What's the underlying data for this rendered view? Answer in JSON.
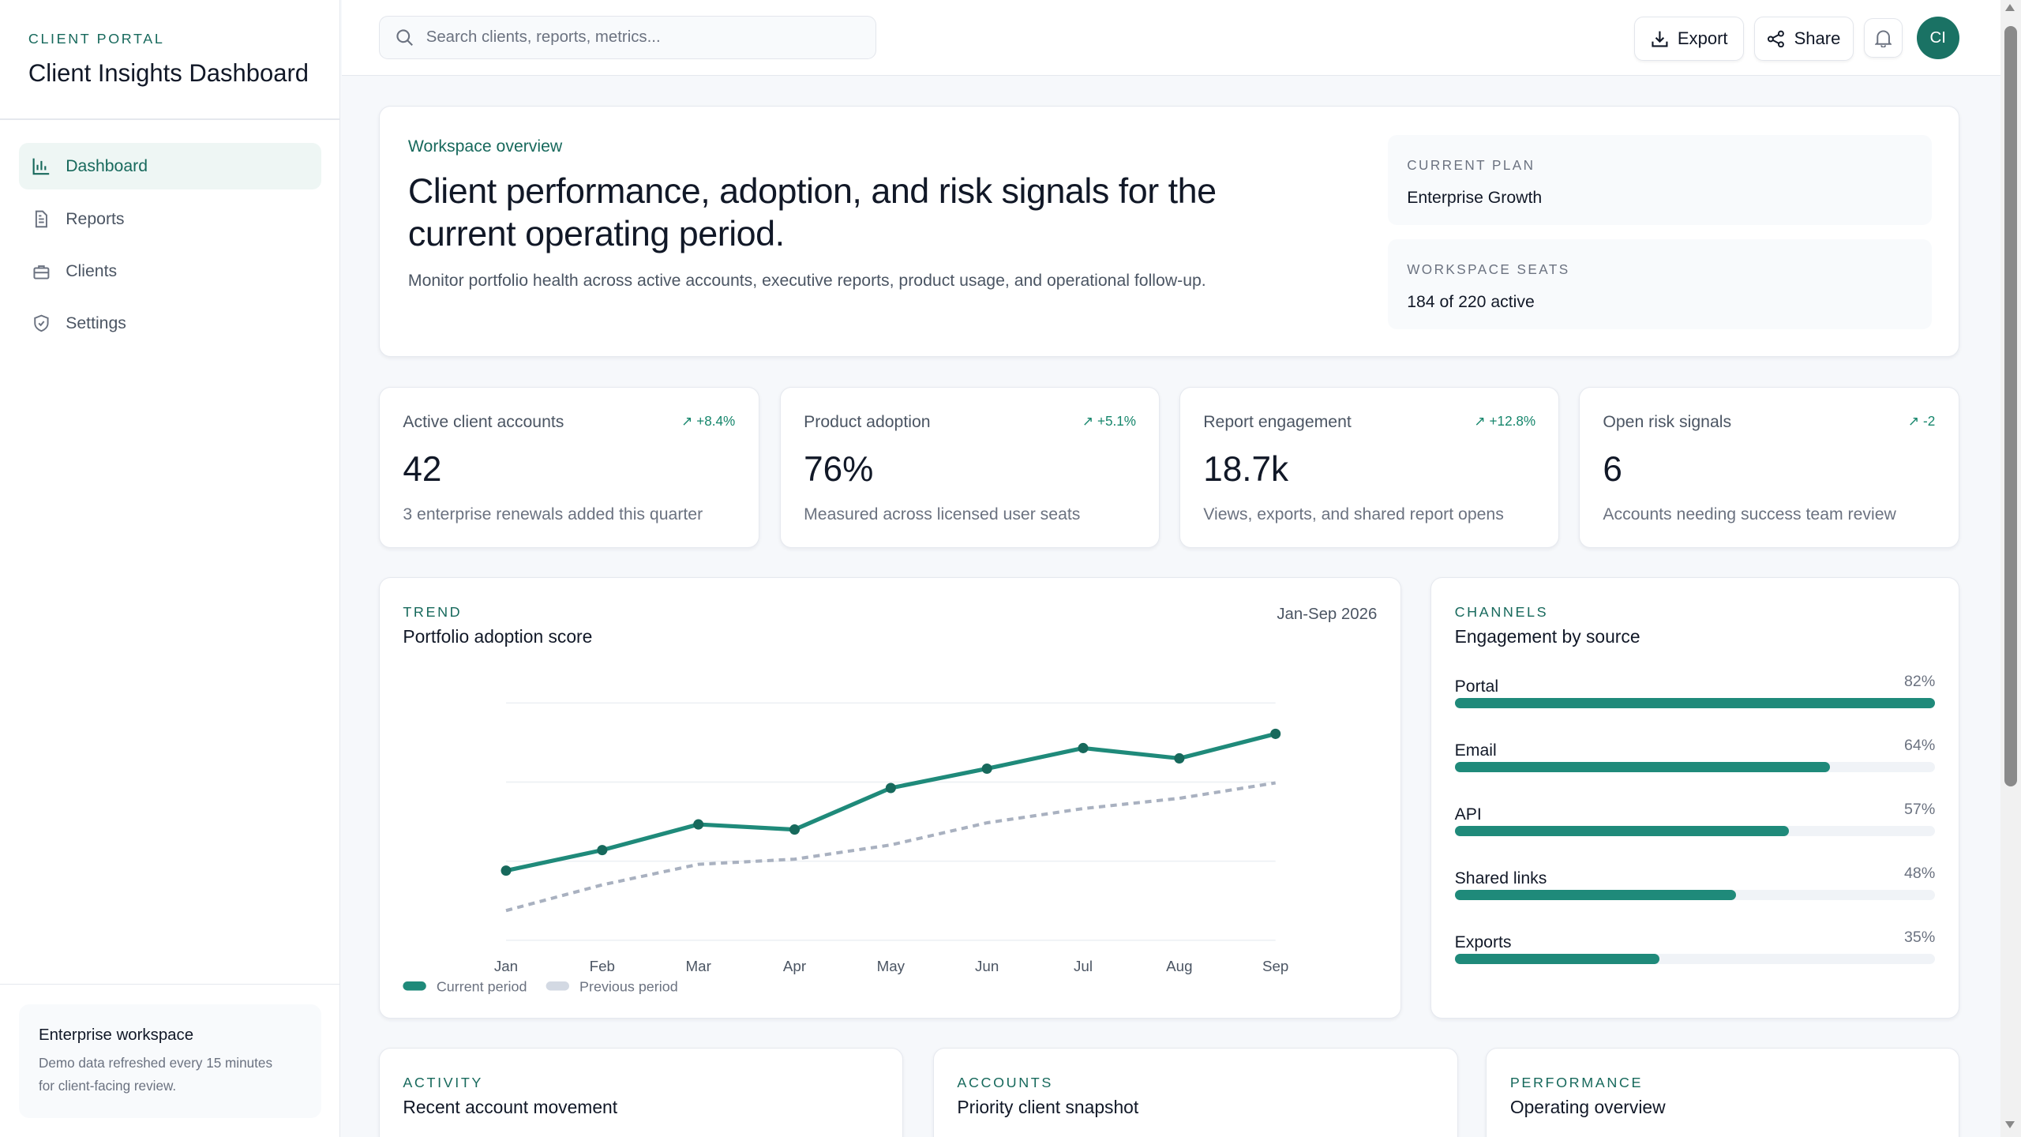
{
  "sidebar": {
    "eyebrow": "CLIENT PORTAL",
    "title": "Client Insights Dashboard",
    "items": [
      {
        "label": "Dashboard",
        "icon": "bar-chart-icon"
      },
      {
        "label": "Reports",
        "icon": "document-icon"
      },
      {
        "label": "Clients",
        "icon": "briefcase-icon"
      },
      {
        "label": "Settings",
        "icon": "shield-icon"
      }
    ],
    "footer": {
      "title": "Enterprise workspace",
      "line1": "Demo data refreshed every 15 minutes",
      "line2": "for client-facing review."
    }
  },
  "topbar": {
    "search_placeholder": "Search clients, reports, metrics...",
    "export": "Export",
    "share": "Share",
    "avatar": "CI"
  },
  "hero": {
    "eyebrow": "Workspace overview",
    "heading_line1": "Client performance, adoption, and risk signals for the",
    "heading_line2": "current operating period.",
    "description": "Monitor portfolio health across active accounts, executive reports, product usage, and operational follow-up.",
    "plan_label": "CURRENT PLAN",
    "plan_value": "Enterprise Growth",
    "seats_label": "WORKSPACE SEATS",
    "seats_value": "184 of 220 active"
  },
  "kpis": [
    {
      "label": "Active client accounts",
      "value": "42",
      "delta": "+8.4%",
      "sub": "3 enterprise renewals added this quarter"
    },
    {
      "label": "Product adoption",
      "value": "76%",
      "delta": "+5.1%",
      "sub": "Measured across licensed user seats"
    },
    {
      "label": "Report engagement",
      "value": "18.7k",
      "delta": "+12.8%",
      "sub": "Views, exports, and shared report opens"
    },
    {
      "label": "Open risk signals",
      "value": "6",
      "delta": "-2",
      "sub": "Accounts needing success team review"
    }
  ],
  "trend": {
    "eyebrow": "TREND",
    "title": "Portfolio adoption score",
    "range": "Jan-Sep 2026"
  },
  "chart_data": {
    "type": "line",
    "title": "Portfolio adoption score",
    "xlabel": "",
    "ylabel": "",
    "ylim": [
      0,
      60
    ],
    "grid": true,
    "legend": "bottom-left",
    "categories": [
      "Jan",
      "Feb",
      "Mar",
      "Apr",
      "May",
      "Jun",
      "Jul",
      "Aug",
      "Sep"
    ],
    "series": [
      {
        "name": "Current period",
        "color": "#1f8a7a",
        "dashed": false,
        "values": [
          17.6,
          22.8,
          29.3,
          28,
          38.5,
          43.4,
          48.6,
          46,
          52.2
        ]
      },
      {
        "name": "Previous period",
        "color": "#a9b1c0",
        "dashed": true,
        "values": [
          7.5,
          14,
          19.2,
          20.5,
          24.1,
          29.7,
          33.3,
          35.9,
          39.8
        ]
      }
    ]
  },
  "channels": {
    "eyebrow": "CHANNELS",
    "title": "Engagement by source",
    "rows": [
      {
        "name": "Portal",
        "value": 82,
        "label": "82%"
      },
      {
        "name": "Email",
        "value": 64,
        "label": "64%"
      },
      {
        "name": "API",
        "value": 57,
        "label": "57%"
      },
      {
        "name": "Shared links",
        "value": 48,
        "label": "48%"
      },
      {
        "name": "Exports",
        "value": 35,
        "label": "35%"
      }
    ]
  },
  "bottom": [
    {
      "eyebrow": "ACTIVITY",
      "title": "Recent account movement"
    },
    {
      "eyebrow": "ACCOUNTS",
      "title": "Priority client snapshot"
    },
    {
      "eyebrow": "PERFORMANCE",
      "title": "Operating overview"
    }
  ],
  "colors": {
    "accent": "#1f8a7a",
    "accent_dark": "#17695c",
    "previous": "#a9b1c0"
  }
}
